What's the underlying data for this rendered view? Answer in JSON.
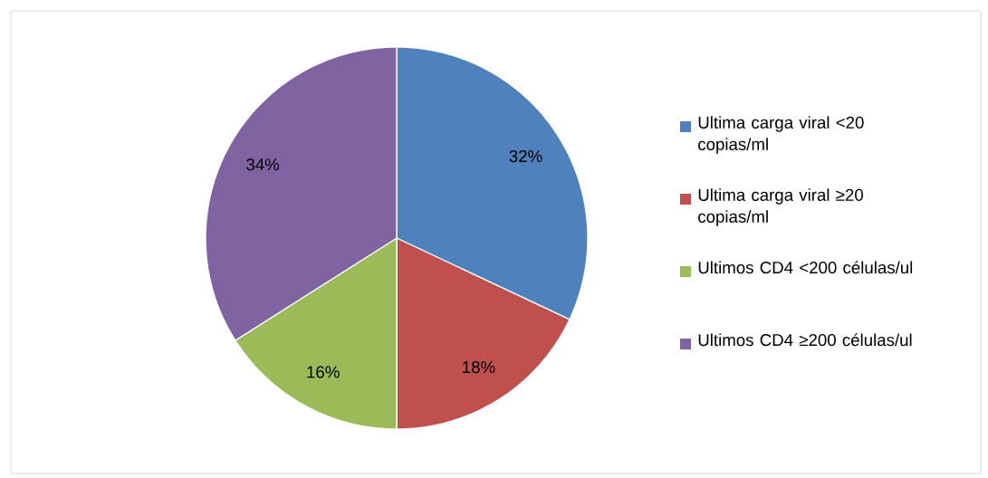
{
  "chart_data": {
    "type": "pie",
    "categories": [
      "Ultima carga viral <20 copias/ml",
      "Ultima carga viral ≥20 copias/ml",
      "Ultimos CD4 <200 células/ul",
      "Ultimos CD4 ≥200 células/ul"
    ],
    "values": [
      32,
      18,
      16,
      34
    ],
    "colors": [
      "#4f81bd",
      "#c0504d",
      "#9bbb59",
      "#8064a2"
    ],
    "value_labels": [
      "32%",
      "18%",
      "16%",
      "34%"
    ],
    "legend": "right"
  }
}
